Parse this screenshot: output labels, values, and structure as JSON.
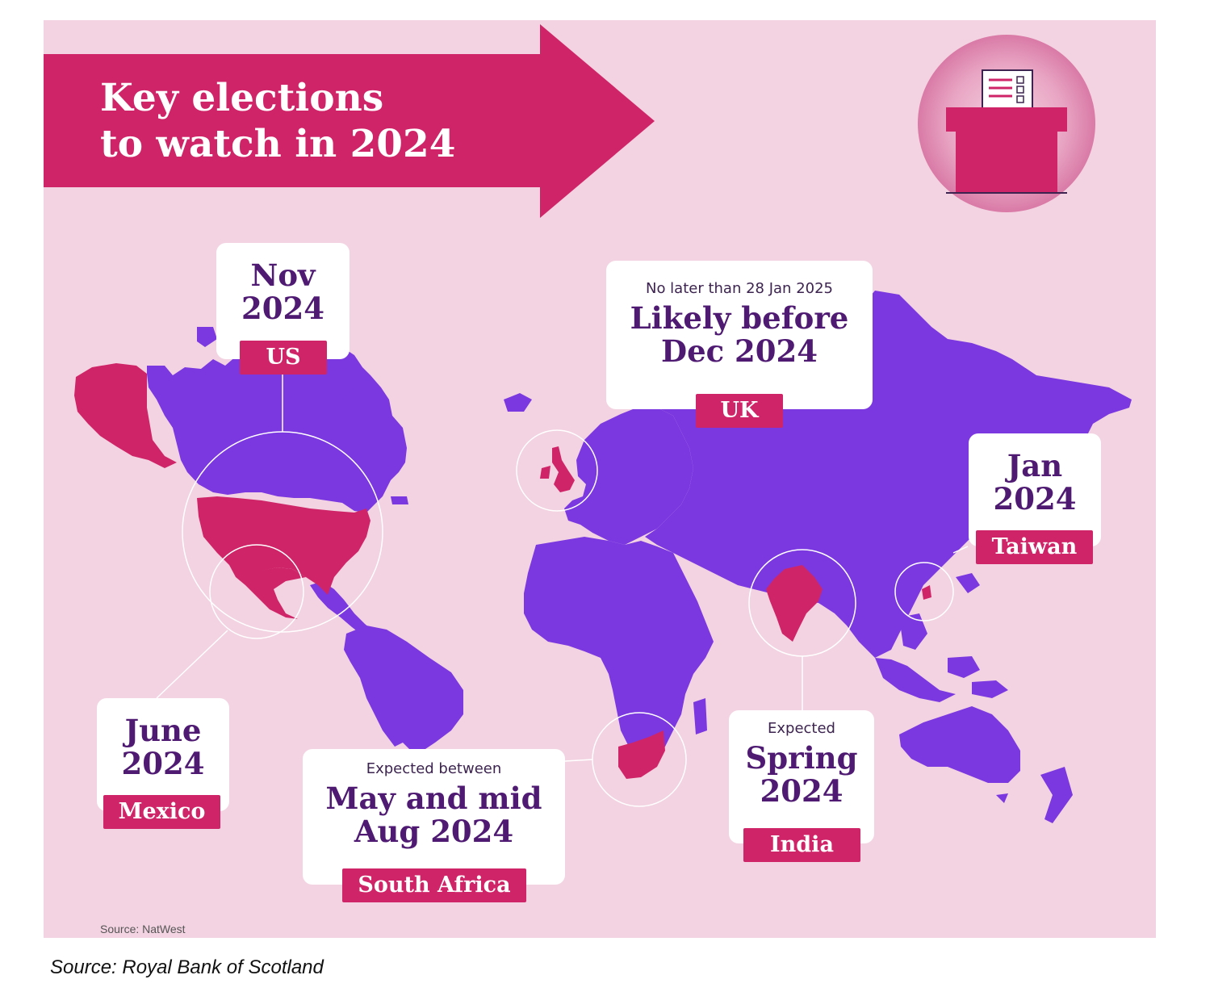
{
  "title": {
    "line1": "Key elections",
    "line2": "to watch in 2024"
  },
  "colors": {
    "background": "#f3d3e1",
    "land": "#7b38e0",
    "highlight": "#cf2568",
    "card": "#ffffff",
    "text": "#4e1a72"
  },
  "icon": "ballot-box-icon",
  "elections": [
    {
      "country": "US",
      "pre": "",
      "date_lines": [
        "Nov",
        "2024"
      ]
    },
    {
      "country": "UK",
      "pre": "No later than 28 Jan 2025",
      "date_lines": [
        "Likely before",
        "Dec 2024"
      ]
    },
    {
      "country": "Taiwan",
      "pre": "",
      "date_lines": [
        "Jan",
        "2024"
      ]
    },
    {
      "country": "Mexico",
      "pre": "",
      "date_lines": [
        "June",
        "2024"
      ]
    },
    {
      "country": "South Africa",
      "pre": "Expected between",
      "date_lines": [
        "May and mid",
        "Aug 2024"
      ]
    },
    {
      "country": "India",
      "pre": "Expected",
      "date_lines": [
        "Spring",
        "2024"
      ]
    }
  ],
  "source_inner": "Source: NatWest",
  "source_outer": "Source: Royal Bank of Scotland"
}
